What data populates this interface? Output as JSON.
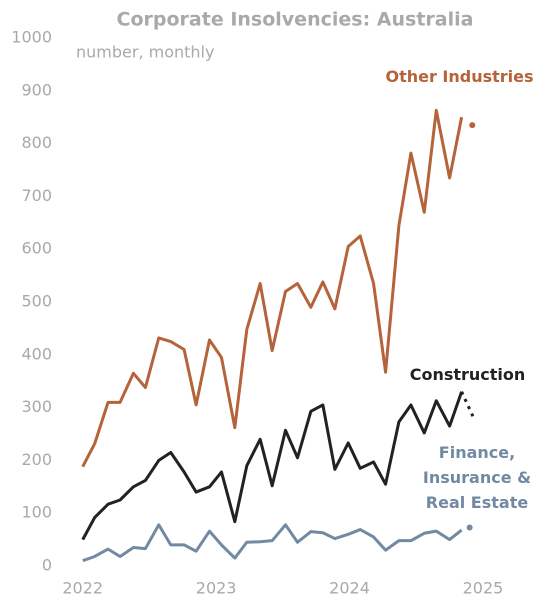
{
  "chart_data": {
    "type": "line",
    "title": "Corporate Insolvencies: Australia",
    "subtitle": "number, monthly",
    "xlim": [
      2021.38,
      2025.48
    ],
    "xticks": [
      2022,
      2023,
      2024,
      2025
    ],
    "ylim": [
      0,
      1000
    ],
    "yticks": [
      0,
      100,
      200,
      300,
      400,
      500,
      600,
      700,
      800,
      900,
      1000
    ],
    "grid": false,
    "x": [
      2022.0,
      2022.09,
      2022.19,
      2022.28,
      2022.38,
      2022.47,
      2022.57,
      2022.66,
      2022.76,
      2022.85,
      2022.95,
      2023.04,
      2023.14,
      2023.23,
      2023.33,
      2023.42,
      2023.52,
      2023.61,
      2023.71,
      2023.8,
      2023.89,
      2023.99,
      2024.08,
      2024.18,
      2024.27,
      2024.37,
      2024.46,
      2024.56,
      2024.65,
      2024.75,
      2024.84
    ],
    "series": [
      {
        "name": "Other Industries",
        "color": "#b5633a",
        "values": [
          188,
          232,
          310,
          310,
          365,
          338,
          432,
          425,
          410,
          305,
          428,
          395,
          262,
          448,
          535,
          408,
          520,
          535,
          490,
          538,
          487,
          605,
          625,
          535,
          367,
          645,
          782,
          670,
          863,
          735,
          850
        ],
        "proj_x": [
          2024.92
        ],
        "proj_values": [
          835
        ]
      },
      {
        "name": "Construction",
        "color": "#222222",
        "values": [
          50,
          92,
          117,
          125,
          150,
          162,
          200,
          215,
          178,
          140,
          150,
          178,
          84,
          190,
          240,
          152,
          257,
          205,
          293,
          305,
          183,
          233,
          185,
          197,
          155,
          273,
          305,
          252,
          313,
          265,
          330
        ],
        "proj_x": [
          2024.84,
          2024.94
        ],
        "proj_values": [
          330,
          275
        ]
      },
      {
        "name": "Finance, Insurance & Real Estate",
        "color": "#7289a3",
        "values": [
          10,
          18,
          32,
          18,
          35,
          33,
          78,
          40,
          40,
          28,
          66,
          40,
          15,
          45,
          46,
          48,
          78,
          45,
          65,
          63,
          52,
          60,
          69,
          55,
          30,
          48,
          48,
          62,
          66,
          50,
          68
        ],
        "proj_x": [
          2024.9
        ],
        "proj_values": [
          73
        ]
      }
    ]
  }
}
